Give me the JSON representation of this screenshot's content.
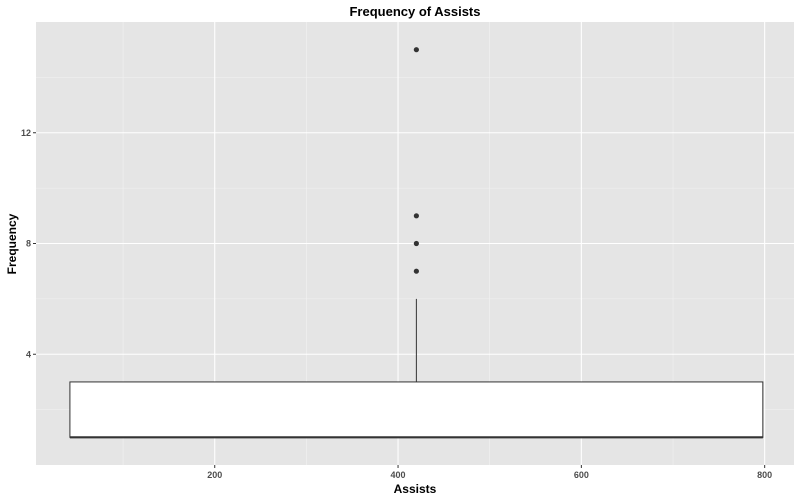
{
  "chart_data": {
    "type": "boxplot",
    "title": "Frequency of Assists",
    "xlabel": "Assists",
    "ylabel": "Frequency",
    "xlim": [
      5,
      832
    ],
    "ylim": [
      0,
      16
    ],
    "x_ticks": [
      200,
      400,
      600,
      800
    ],
    "y_ticks": [
      4,
      8,
      12
    ],
    "grid": true,
    "colors": {
      "panel": "#e5e5e5",
      "grid_major": "#ffffff",
      "box_fill": "#ffffff",
      "box_line": "#333333",
      "point": "#333333"
    },
    "box": {
      "x_min": 42,
      "x_max": 798,
      "x_center": 420,
      "median": 1,
      "q1": 1,
      "q3": 3,
      "whisker_low": 1,
      "whisker_high": 6,
      "outliers": [
        7,
        8,
        9,
        15
      ]
    }
  }
}
